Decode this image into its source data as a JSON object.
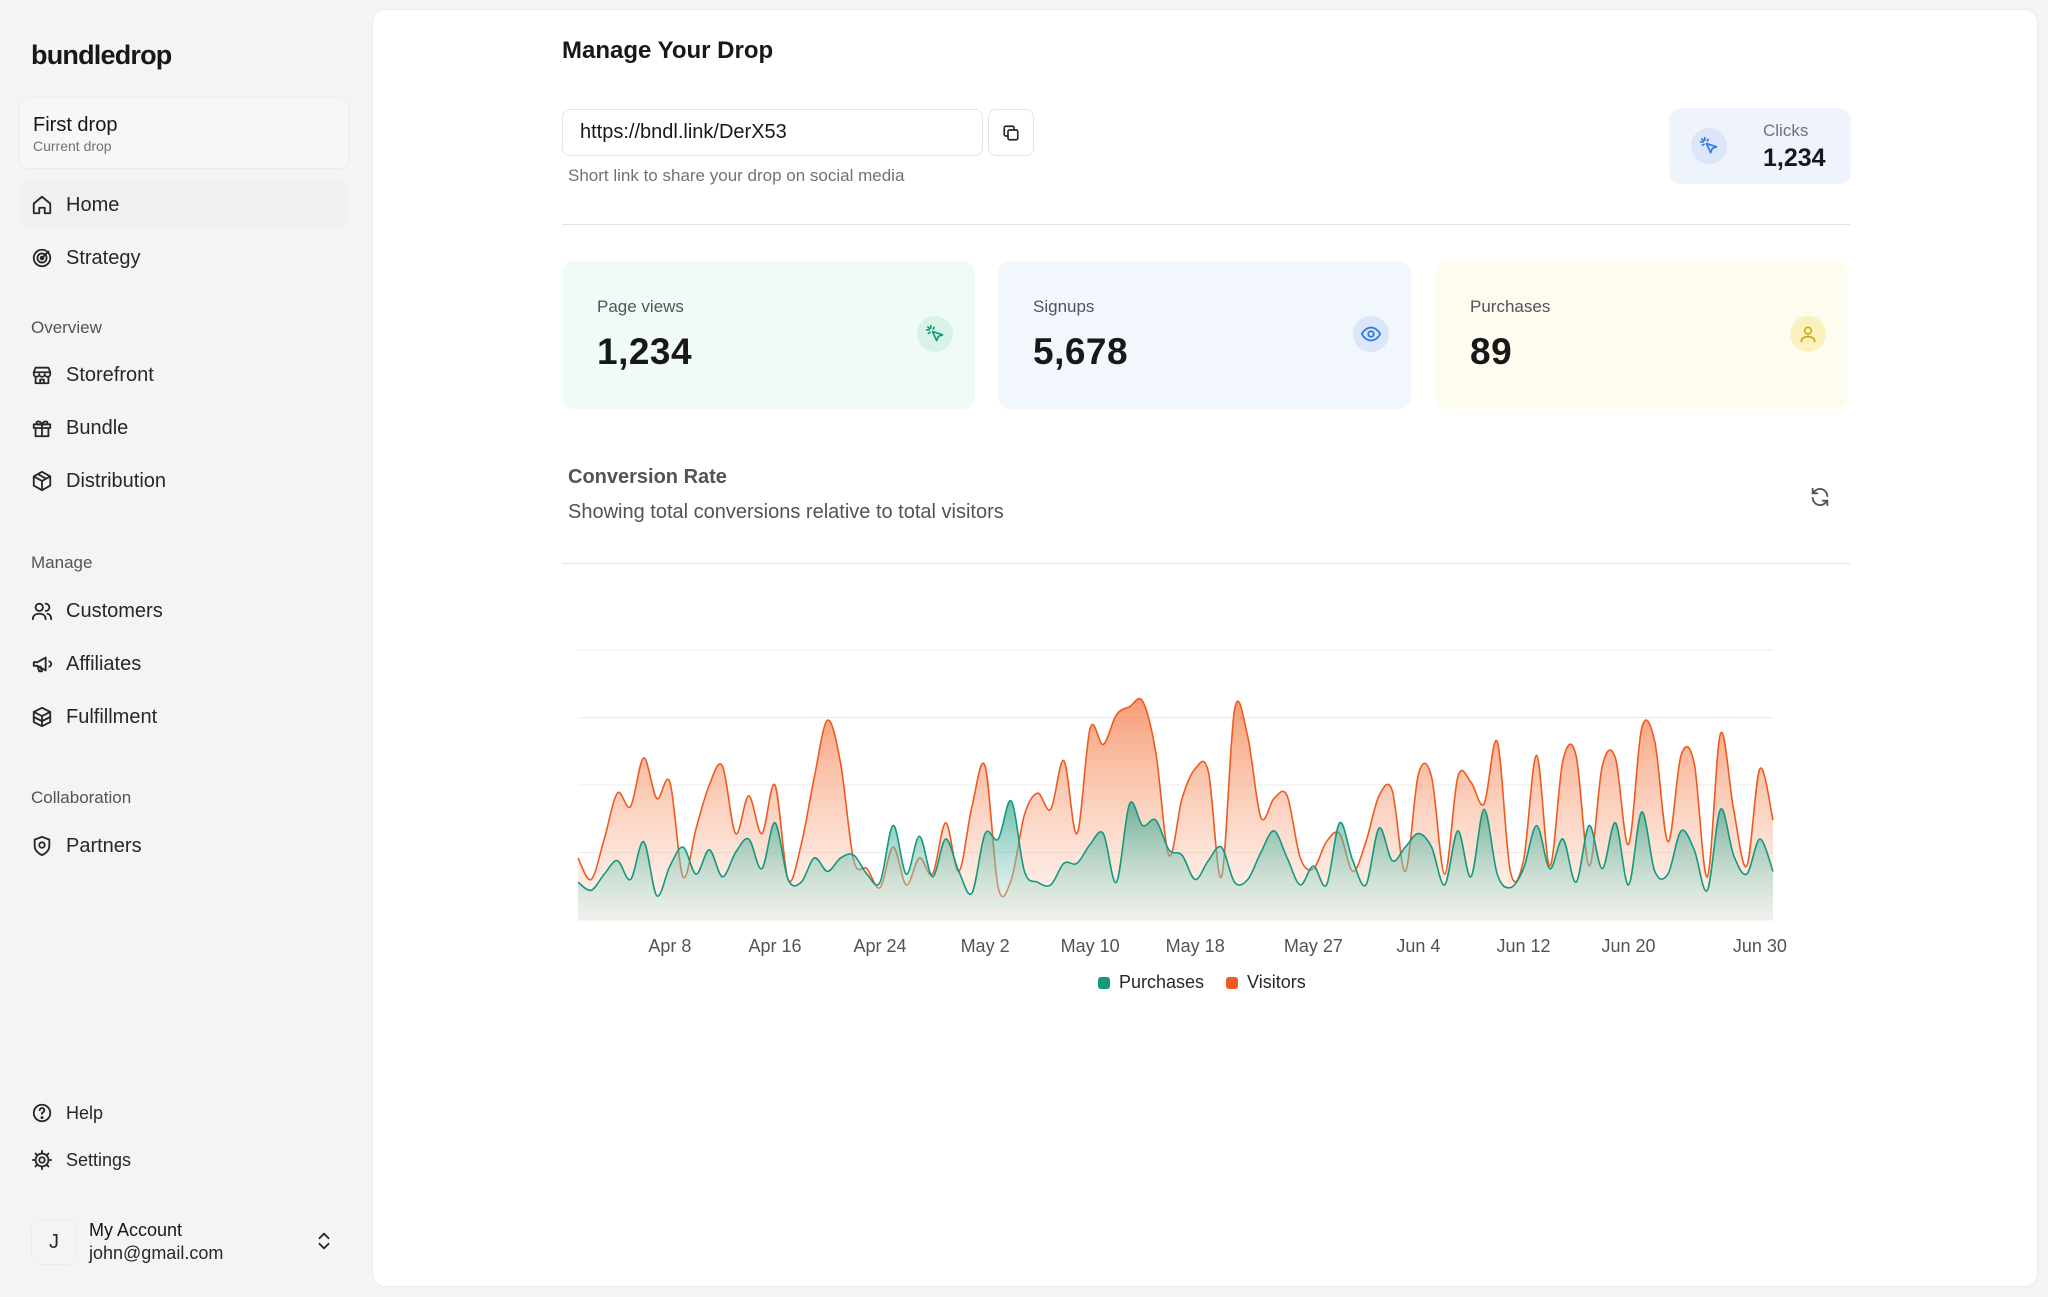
{
  "brand": {
    "name": "bundledrop"
  },
  "drop_switcher": {
    "title": "First drop",
    "subtitle": "Current drop"
  },
  "nav": {
    "top": [
      {
        "label": "Home",
        "icon": "home-icon",
        "active": true
      },
      {
        "label": "Strategy",
        "icon": "target-icon",
        "active": false
      }
    ],
    "sections": [
      {
        "title": "Overview",
        "items": [
          {
            "label": "Storefront",
            "icon": "store-icon"
          },
          {
            "label": "Bundle",
            "icon": "gift-icon"
          },
          {
            "label": "Distribution",
            "icon": "package-icon"
          }
        ]
      },
      {
        "title": "Manage",
        "items": [
          {
            "label": "Customers",
            "icon": "users-icon"
          },
          {
            "label": "Affiliates",
            "icon": "megaphone-icon"
          },
          {
            "label": "Fulfillment",
            "icon": "boxes-icon"
          }
        ]
      },
      {
        "title": "Collaboration",
        "items": [
          {
            "label": "Partners",
            "icon": "shield-icon"
          }
        ]
      }
    ],
    "bottom": [
      {
        "label": "Help",
        "icon": "help-circle-icon"
      },
      {
        "label": "Settings",
        "icon": "gear-icon"
      }
    ]
  },
  "account": {
    "initial": "J",
    "name": "My Account",
    "email": "john@gmail.com"
  },
  "main": {
    "title": "Manage Your Drop",
    "short_link": {
      "value": "https://bndl.link/DerX53",
      "help": "Short link to share your drop on social media"
    },
    "clicks": {
      "label": "Clicks",
      "value": "1,234"
    },
    "stats": [
      {
        "label": "Page views",
        "value": "1,234",
        "icon": "cursor-click-icon",
        "bg": "#f0fbf6",
        "icon_bg": "#d9f2e8",
        "icon_color": "#0f9b7e"
      },
      {
        "label": "Signups",
        "value": "5,678",
        "icon": "eye-icon",
        "bg": "#f2f6fd",
        "icon_bg": "#dbe6f8",
        "icon_color": "#2b7be0"
      },
      {
        "label": "Purchases",
        "value": "89",
        "icon": "user-icon",
        "bg": "#fefcef",
        "icon_bg": "#fbf1bf",
        "icon_color": "#d8a60d"
      }
    ],
    "chart_section": {
      "title": "Conversion Rate",
      "subtitle": "Showing total conversions relative to total visitors"
    }
  },
  "colors": {
    "purchases": "#14987f",
    "visitors": "#ef5a1f"
  },
  "chart_data": {
    "type": "area",
    "x": [
      "2024-04-01",
      "2024-04-02",
      "2024-04-03",
      "2024-04-04",
      "2024-04-05",
      "2024-04-06",
      "2024-04-07",
      "2024-04-08",
      "2024-04-09",
      "2024-04-10",
      "2024-04-11",
      "2024-04-12",
      "2024-04-13",
      "2024-04-14",
      "2024-04-15",
      "2024-04-16",
      "2024-04-17",
      "2024-04-18",
      "2024-04-19",
      "2024-04-20",
      "2024-04-21",
      "2024-04-22",
      "2024-04-23",
      "2024-04-24",
      "2024-04-25",
      "2024-04-26",
      "2024-04-27",
      "2024-04-28",
      "2024-04-29",
      "2024-04-30",
      "2024-05-01",
      "2024-05-02",
      "2024-05-03",
      "2024-05-04",
      "2024-05-05",
      "2024-05-06",
      "2024-05-07",
      "2024-05-08",
      "2024-05-09",
      "2024-05-10",
      "2024-05-11",
      "2024-05-12",
      "2024-05-13",
      "2024-05-14",
      "2024-05-15",
      "2024-05-16",
      "2024-05-17",
      "2024-05-18",
      "2024-05-19",
      "2024-05-20",
      "2024-05-21",
      "2024-05-22",
      "2024-05-23",
      "2024-05-24",
      "2024-05-25",
      "2024-05-26",
      "2024-05-27",
      "2024-05-28",
      "2024-05-29",
      "2024-05-30",
      "2024-05-31",
      "2024-06-01",
      "2024-06-02",
      "2024-06-03",
      "2024-06-04",
      "2024-06-05",
      "2024-06-06",
      "2024-06-07",
      "2024-06-08",
      "2024-06-09",
      "2024-06-10",
      "2024-06-11",
      "2024-06-12",
      "2024-06-13",
      "2024-06-14",
      "2024-06-15",
      "2024-06-16",
      "2024-06-17",
      "2024-06-18",
      "2024-06-19",
      "2024-06-20",
      "2024-06-21",
      "2024-06-22",
      "2024-06-23",
      "2024-06-24",
      "2024-06-25",
      "2024-06-26",
      "2024-06-27",
      "2024-06-28",
      "2024-06-29",
      "2024-06-30",
      "2024-07-01"
    ],
    "x_ticks": [
      "Apr 8",
      "Apr 16",
      "Apr 24",
      "May 2",
      "May 10",
      "May 18",
      "May 27",
      "Jun 4",
      "Jun 12",
      "Jun 20",
      "Jun 30"
    ],
    "x_tick_dates": [
      "2024-04-08",
      "2024-04-16",
      "2024-04-24",
      "2024-05-02",
      "2024-05-10",
      "2024-05-18",
      "2024-05-27",
      "2024-06-04",
      "2024-06-12",
      "2024-06-20",
      "2024-06-30"
    ],
    "series": [
      {
        "name": "Purchases",
        "color": "#14987f",
        "values": [
          140,
          110,
          170,
          220,
          150,
          290,
          90,
          200,
          270,
          170,
          260,
          160,
          250,
          300,
          190,
          360,
          150,
          140,
          230,
          180,
          230,
          240,
          170,
          140,
          350,
          170,
          310,
          160,
          300,
          180,
          100,
          320,
          300,
          440,
          180,
          140,
          130,
          210,
          210,
          280,
          320,
          140,
          430,
          350,
          370,
          260,
          240,
          150,
          220,
          270,
          140,
          150,
          250,
          330,
          230,
          130,
          200,
          130,
          360,
          220,
          130,
          340,
          220,
          270,
          320,
          270,
          130,
          330,
          160,
          410,
          170,
          120,
          190,
          350,
          190,
          300,
          140,
          350,
          190,
          360,
          130,
          400,
          180,
          170,
          330,
          260,
          110,
          410,
          240,
          170,
          300,
          180
        ]
      },
      {
        "name": "Visitors",
        "color": "#ef5a1f",
        "values": [
          230,
          150,
          300,
          470,
          420,
          600,
          450,
          510,
          160,
          340,
          500,
          570,
          320,
          460,
          320,
          500,
          150,
          280,
          530,
          740,
          580,
          220,
          190,
          120,
          270,
          130,
          230,
          170,
          360,
          180,
          420,
          570,
          120,
          150,
          390,
          470,
          410,
          590,
          320,
          710,
          650,
          760,
          790,
          810,
          620,
          240,
          450,
          560,
          550,
          160,
          780,
          680,
          380,
          450,
          460,
          230,
          190,
          290,
          320,
          180,
          290,
          460,
          480,
          180,
          540,
          530,
          170,
          530,
          510,
          430,
          660,
          180,
          220,
          610,
          200,
          590,
          610,
          200,
          570,
          600,
          280,
          710,
          660,
          290,
          610,
          580,
          160,
          690,
          410,
          200,
          560,
          370
        ]
      }
    ],
    "ylim": [
      0,
      1000
    ],
    "grid": true,
    "legend": "bottom-center"
  }
}
